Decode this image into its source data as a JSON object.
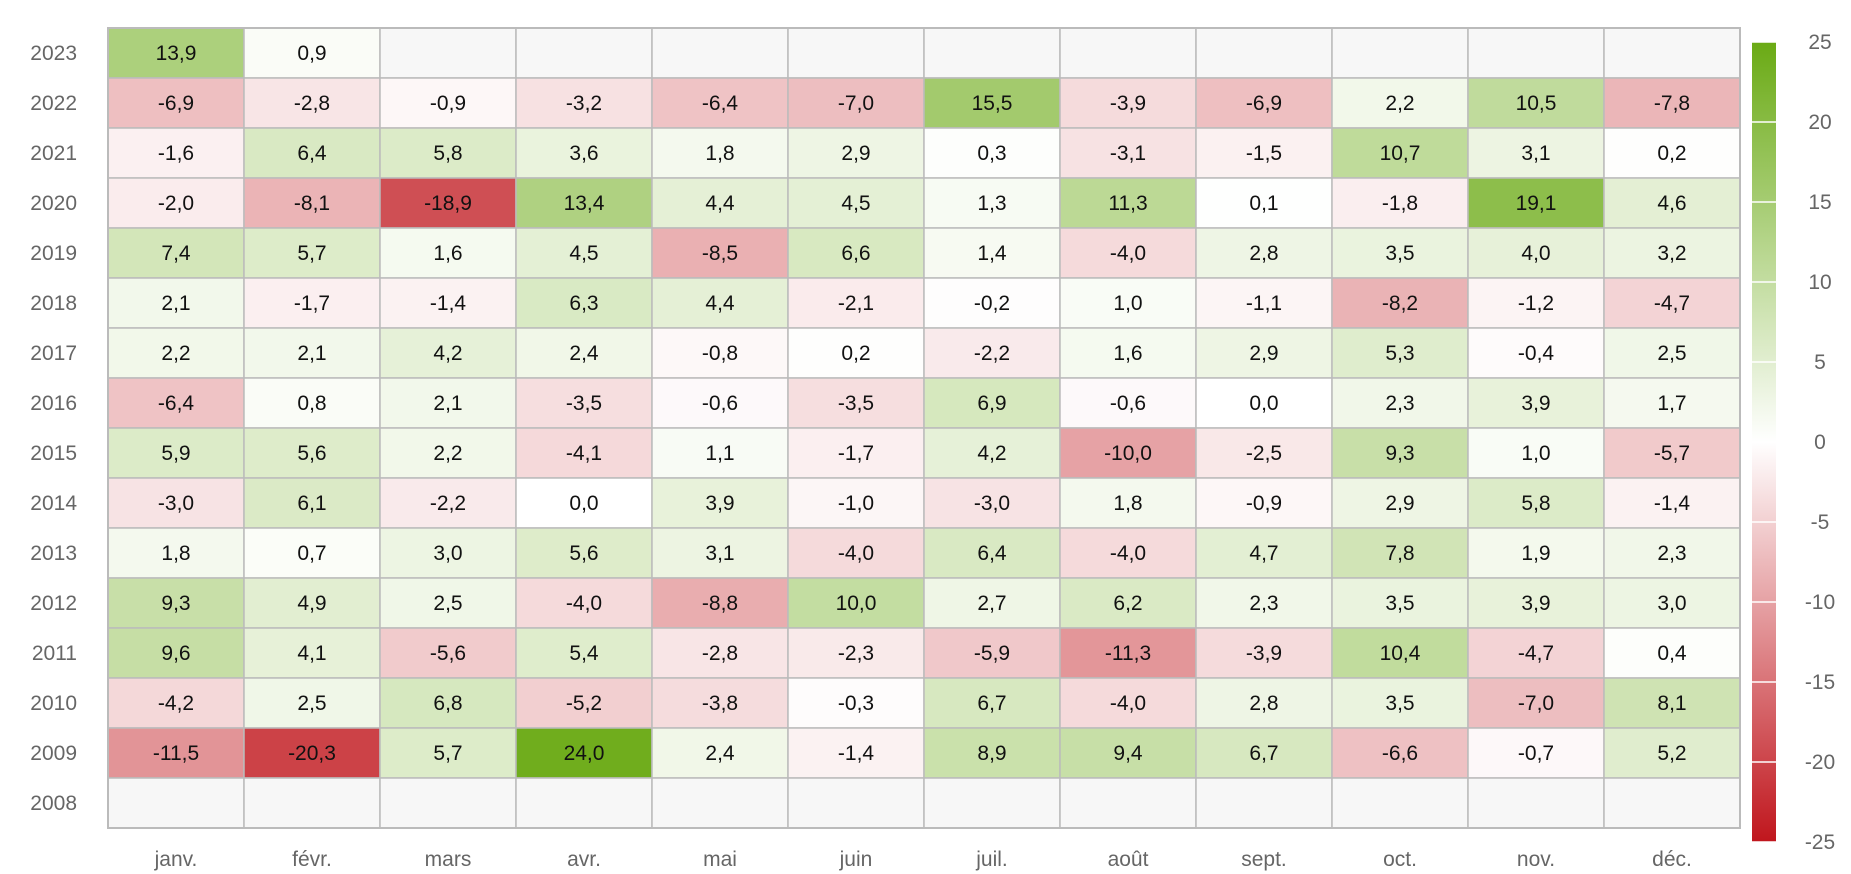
{
  "chart_data": {
    "type": "heatmap",
    "title": "",
    "xlabel": "",
    "ylabel": "",
    "months": [
      "janv.",
      "févr.",
      "mars",
      "avr.",
      "mai",
      "juin",
      "juil.",
      "août",
      "sept.",
      "oct.",
      "nov.",
      "déc."
    ],
    "years": [
      "2023",
      "2022",
      "2021",
      "2020",
      "2019",
      "2018",
      "2017",
      "2016",
      "2015",
      "2014",
      "2013",
      "2012",
      "2011",
      "2010",
      "2009",
      "2008"
    ],
    "values": [
      [
        13.9,
        0.9,
        null,
        null,
        null,
        null,
        null,
        null,
        null,
        null,
        null,
        null
      ],
      [
        -6.9,
        -2.8,
        -0.9,
        -3.2,
        -6.4,
        -7.0,
        15.5,
        -3.9,
        -6.9,
        2.2,
        10.5,
        -7.8
      ],
      [
        -1.6,
        6.4,
        5.8,
        3.6,
        1.8,
        2.9,
        0.3,
        -3.1,
        -1.5,
        10.7,
        3.1,
        0.2
      ],
      [
        -2.0,
        -8.1,
        -18.9,
        13.4,
        4.4,
        4.5,
        1.3,
        11.3,
        0.1,
        -1.8,
        19.1,
        4.6
      ],
      [
        7.4,
        5.7,
        1.6,
        4.5,
        -8.5,
        6.6,
        1.4,
        -4.0,
        2.8,
        3.5,
        4.0,
        3.2
      ],
      [
        2.1,
        -1.7,
        -1.4,
        6.3,
        4.4,
        -2.1,
        -0.2,
        1.0,
        -1.1,
        -8.2,
        -1.2,
        -4.7
      ],
      [
        2.2,
        2.1,
        4.2,
        2.4,
        -0.8,
        0.2,
        -2.2,
        1.6,
        2.9,
        5.3,
        -0.4,
        2.5
      ],
      [
        -6.4,
        0.8,
        2.1,
        -3.5,
        -0.6,
        -3.5,
        6.9,
        -0.6,
        0.0,
        2.3,
        3.9,
        1.7
      ],
      [
        5.9,
        5.6,
        2.2,
        -4.1,
        1.1,
        -1.7,
        4.2,
        -10.0,
        -2.5,
        9.3,
        1.0,
        -5.7
      ],
      [
        -3.0,
        6.1,
        -2.2,
        0.0,
        3.9,
        -1.0,
        -3.0,
        1.8,
        -0.9,
        2.9,
        5.8,
        -1.4
      ],
      [
        1.8,
        0.7,
        3.0,
        5.6,
        3.1,
        -4.0,
        6.4,
        -4.0,
        4.7,
        7.8,
        1.9,
        2.3
      ],
      [
        9.3,
        4.9,
        2.5,
        -4.0,
        -8.8,
        10.0,
        2.7,
        6.2,
        2.3,
        3.5,
        3.9,
        3.0
      ],
      [
        9.6,
        4.1,
        -5.6,
        5.4,
        -2.8,
        -2.3,
        -5.9,
        -11.3,
        -3.9,
        10.4,
        -4.7,
        0.4
      ],
      [
        -4.2,
        2.5,
        6.8,
        -5.2,
        -3.8,
        -0.3,
        6.7,
        -4.0,
        2.8,
        3.5,
        -7.0,
        8.1
      ],
      [
        -11.5,
        -20.3,
        5.7,
        24.0,
        2.4,
        -1.4,
        8.9,
        9.4,
        6.7,
        -6.6,
        -0.7,
        5.2
      ],
      [
        null,
        null,
        null,
        null,
        null,
        null,
        null,
        null,
        null,
        null,
        null,
        null
      ]
    ],
    "color_scale": {
      "min": -25,
      "max": 25,
      "ticks": [
        25,
        20,
        15,
        10,
        5,
        0,
        -5,
        -10,
        -15,
        -20,
        -25
      ],
      "positive_color": "#6aaa14",
      "neutral_color": "#ffffff",
      "negative_color": "#c0161d",
      "empty_cell_color": "#f7f7f7",
      "cell_border_color": "#bbbbbb"
    },
    "decimal_separator": ",",
    "legend_position": "right",
    "grid": true
  }
}
